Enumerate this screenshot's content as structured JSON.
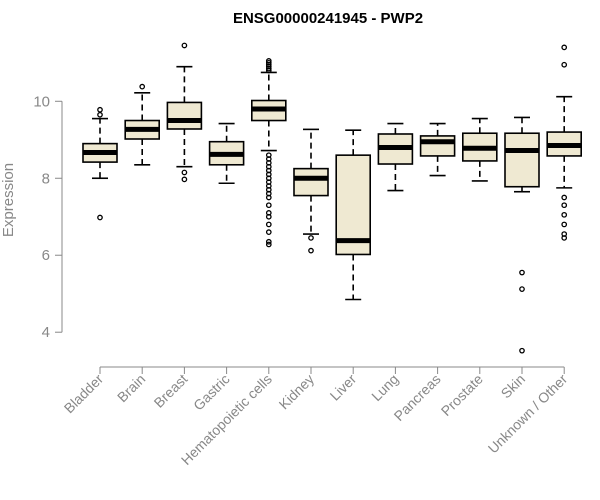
{
  "chart_data": {
    "type": "boxplot",
    "title": "ENSG00000241945 - PWP2",
    "xlabel": "",
    "ylabel": "Expression",
    "ylim": [
      3.2,
      11.8
    ],
    "yticks": [
      4,
      6,
      8,
      10
    ],
    "box_fill": "#efe9d2",
    "grid": false,
    "categories": [
      "Bladder",
      "Brain",
      "Breast",
      "Gastric",
      "Hematopoietic cells",
      "Kidney",
      "Liver",
      "Lung",
      "Pancreas",
      "Prostate",
      "Skin",
      "Unknown / Other"
    ],
    "boxes": [
      {
        "category": "Bladder",
        "whisker_low": 8.0,
        "q1": 8.42,
        "median": 8.67,
        "q3": 8.9,
        "whisker_high": 9.55,
        "outliers": [
          9.65,
          9.78,
          6.98
        ]
      },
      {
        "category": "Brain",
        "whisker_low": 8.35,
        "q1": 9.02,
        "median": 9.27,
        "q3": 9.5,
        "whisker_high": 10.22,
        "outliers": [
          10.38
        ]
      },
      {
        "category": "Breast",
        "whisker_low": 8.3,
        "q1": 9.28,
        "median": 9.5,
        "q3": 9.97,
        "whisker_high": 10.9,
        "outliers": [
          11.45,
          8.15,
          7.97
        ]
      },
      {
        "category": "Gastric",
        "whisker_low": 7.87,
        "q1": 8.35,
        "median": 8.62,
        "q3": 8.95,
        "whisker_high": 9.42,
        "outliers": []
      },
      {
        "category": "Hematopoietic cells",
        "whisker_low": 8.72,
        "q1": 9.5,
        "median": 9.8,
        "q3": 10.02,
        "whisker_high": 10.75,
        "outliers": [
          10.8,
          10.85,
          10.9,
          10.95,
          11.0,
          11.05,
          8.6,
          8.5,
          8.4,
          8.3,
          8.2,
          8.1,
          8.0,
          7.9,
          7.8,
          7.7,
          7.6,
          7.5,
          7.3,
          7.1,
          7.0,
          6.8,
          6.6,
          6.35,
          6.28
        ]
      },
      {
        "category": "Kidney",
        "whisker_low": 6.55,
        "q1": 7.55,
        "median": 8.0,
        "q3": 8.25,
        "whisker_high": 9.27,
        "outliers": [
          6.45,
          6.12
        ]
      },
      {
        "category": "Liver",
        "whisker_low": 4.85,
        "q1": 6.02,
        "median": 6.38,
        "q3": 8.6,
        "whisker_high": 9.25,
        "outliers": []
      },
      {
        "category": "Lung",
        "whisker_low": 7.68,
        "q1": 8.37,
        "median": 8.8,
        "q3": 9.15,
        "whisker_high": 9.42,
        "outliers": []
      },
      {
        "category": "Pancreas",
        "whisker_low": 8.07,
        "q1": 8.58,
        "median": 8.95,
        "q3": 9.1,
        "whisker_high": 9.42,
        "outliers": []
      },
      {
        "category": "Prostate",
        "whisker_low": 7.93,
        "q1": 8.45,
        "median": 8.78,
        "q3": 9.17,
        "whisker_high": 9.55,
        "outliers": []
      },
      {
        "category": "Skin",
        "whisker_low": 7.65,
        "q1": 7.78,
        "median": 8.72,
        "q3": 9.17,
        "whisker_high": 9.58,
        "outliers": [
          5.55,
          5.12,
          3.52
        ]
      },
      {
        "category": "Unknown / Other",
        "whisker_low": 7.75,
        "q1": 8.58,
        "median": 8.85,
        "q3": 9.2,
        "whisker_high": 10.12,
        "outliers": [
          10.95,
          11.4,
          7.5,
          7.3,
          7.05,
          6.8,
          6.55,
          6.45
        ]
      }
    ]
  }
}
